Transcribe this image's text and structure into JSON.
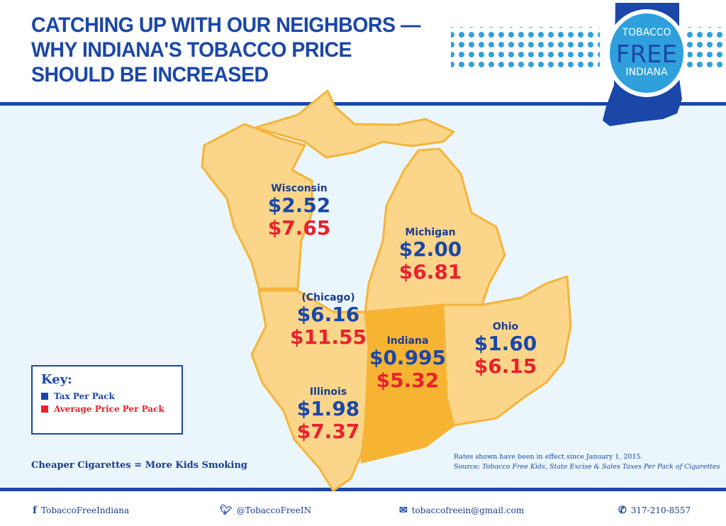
{
  "header": {
    "title_lines": [
      "CATCHING UP WITH OUR NEIGHBORS —",
      "WHY INDIANA'S TOBACCO PRICE",
      "SHOULD BE INCREASED"
    ],
    "logo": {
      "line1": "TOBACCO",
      "line2": "FREE",
      "line3": "INDIANA"
    }
  },
  "colors": {
    "brand_blue": "#1a47a8",
    "tax": "#1a47a8",
    "price": "#e8212e",
    "state_fill": "#fbd68a",
    "indiana_fill": "#f7b432",
    "border": "#f5b43a"
  },
  "states": [
    {
      "name": "Wisconsin",
      "tax": "$2.52",
      "price": "$7.65"
    },
    {
      "name": "Michigan",
      "tax": "$2.00",
      "price": "$6.81"
    },
    {
      "name": "(Chicago)",
      "tax": "$6.16",
      "price": "$11.55"
    },
    {
      "name": "Indiana",
      "tax": "$0.995",
      "price": "$5.32"
    },
    {
      "name": "Ohio",
      "tax": "$1.60",
      "price": "$6.15"
    },
    {
      "name": "Illinois",
      "tax": "$1.98",
      "price": "$7.37"
    }
  ],
  "key": {
    "title": "Key:",
    "items": [
      "Tax Per Pack",
      "Average Price Per Pack"
    ]
  },
  "slogan": "Cheaper Cigarettes = More Kids Smoking",
  "note": {
    "line1": "Rates shown have been in effect since January 1, 2015.",
    "source_prefix": "Source: ",
    "source": "Tobacco Free Kids, State Excise & Sales Taxes Per Pack of Cigarettes"
  },
  "footer": {
    "facebook": "TobaccoFreeIndiana",
    "twitter": "@TobaccoFreeIN",
    "email": "tobaccofreein@gmail.com",
    "phone": "317-210-8557"
  }
}
